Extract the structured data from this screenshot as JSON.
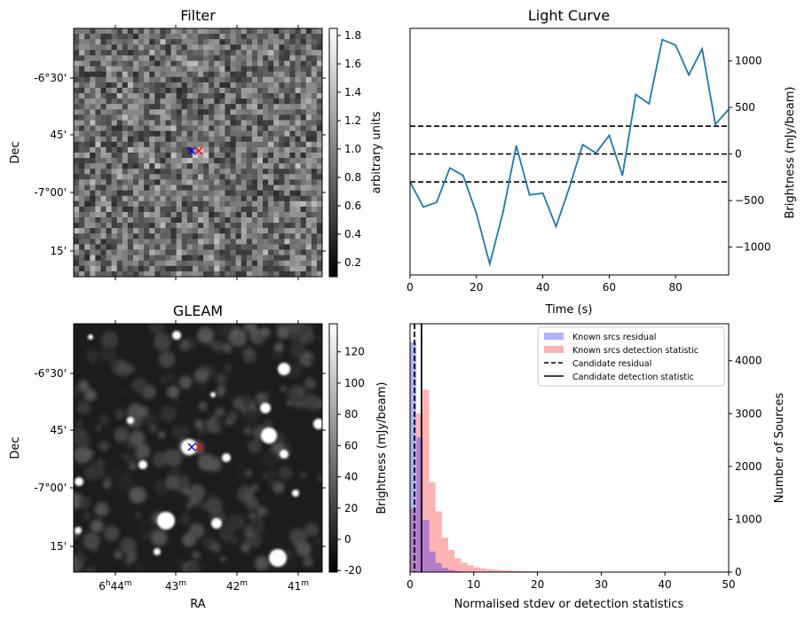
{
  "chart_data": [
    {
      "type": "heatmap",
      "title": "Filter",
      "ylabel": "Dec",
      "y_ticks": [
        "-6°30'",
        "45'",
        "-7°00'",
        "15'"
      ],
      "colorbar": {
        "label": "arbitrary units",
        "ticks": [
          "0.2",
          "0.4",
          "0.6",
          "0.8",
          "1.0",
          "1.2",
          "1.4",
          "1.6",
          "1.8"
        ],
        "range": [
          0.1,
          1.85
        ],
        "colormap": "gray"
      },
      "markers": [
        {
          "symbol": "x",
          "color": "#0000ff"
        },
        {
          "symbol": "x",
          "color": "#ff0000"
        }
      ]
    },
    {
      "type": "line",
      "title": "Light Curve",
      "xlabel": "Time (s)",
      "ylabel": "Brightness (mJy/beam)",
      "xlim": [
        0,
        96
      ],
      "ylim": [
        -1300,
        1350
      ],
      "x_ticks": [
        0,
        20,
        40,
        60,
        80
      ],
      "y_ticks": [
        -1000,
        -500,
        0,
        500,
        1000
      ],
      "series": [
        {
          "color": "#1f77b4",
          "x": [
            0,
            4,
            8,
            12,
            16,
            20,
            24,
            28,
            32,
            36,
            40,
            44,
            48,
            52,
            56,
            60,
            64,
            68,
            72,
            76,
            80,
            84,
            88,
            92,
            96
          ],
          "y": [
            -300,
            -570,
            -520,
            -150,
            -230,
            -640,
            -1180,
            -630,
            90,
            -440,
            -420,
            -780,
            -360,
            100,
            10,
            200,
            -230,
            640,
            540,
            1230,
            1170,
            850,
            1130,
            320,
            480
          ]
        }
      ],
      "hlines": [
        {
          "y": 300,
          "style": "dashed",
          "color": "#000000"
        },
        {
          "y": 0,
          "style": "dashed",
          "color": "#000000"
        },
        {
          "y": -300,
          "style": "dashed",
          "color": "#000000"
        }
      ]
    },
    {
      "type": "heatmap",
      "title": "GLEAM",
      "xlabel": "RA",
      "ylabel": "Dec",
      "x_ticks": [
        "6h44m",
        "43m",
        "42m",
        "41m"
      ],
      "y_ticks": [
        "-6°30'",
        "45'",
        "-7°00'",
        "15'"
      ],
      "colorbar": {
        "label": "Brightness (mJy/beam)",
        "ticks": [
          "-20",
          "0",
          "20",
          "40",
          "60",
          "80",
          "100",
          "120"
        ],
        "range": [
          -21,
          138
        ],
        "colormap": "gray"
      },
      "markers": [
        {
          "symbol": "x",
          "color": "#0000ff"
        },
        {
          "symbol": "x",
          "color": "#ff0000"
        }
      ]
    },
    {
      "type": "bar",
      "subtype": "histogram",
      "xlabel": "Normalised stdev or detection statistics",
      "ylabel": "Number of Sources",
      "xlim": [
        0,
        50
      ],
      "ylim": [
        0,
        4700
      ],
      "x_ticks": [
        0,
        10,
        20,
        30,
        40,
        50
      ],
      "y_ticks": [
        0,
        1000,
        2000,
        3000,
        4000
      ],
      "legend": "top-right",
      "series": [
        {
          "name": "Known srcs residual",
          "color": "#0000ff",
          "bin_width": 1,
          "bin_start": 0,
          "values": [
            4350,
            2550,
            990,
            390,
            170,
            80,
            40,
            20,
            10,
            5
          ]
        },
        {
          "name": "Known srcs detection statistic",
          "color": "#ff0000",
          "bin_width": 1,
          "bin_start": 0,
          "values": [
            1200,
            3000,
            3450,
            1700,
            1150,
            650,
            420,
            260,
            180,
            130,
            90,
            70,
            55,
            45,
            38,
            32,
            26,
            22,
            18,
            15,
            13,
            11,
            10,
            9,
            8,
            7,
            6,
            6,
            5,
            5,
            4,
            4,
            4,
            3,
            3,
            3,
            3,
            2,
            2,
            2,
            2,
            2,
            2,
            1,
            1,
            1,
            1,
            1
          ]
        }
      ],
      "vlines": [
        {
          "name": "Candidate residual",
          "x": 0.7,
          "style": "dashed",
          "color": "#000000"
        },
        {
          "name": "Candidate detection statistic",
          "x": 1.8,
          "style": "solid",
          "color": "#000000"
        }
      ]
    }
  ],
  "panels": {
    "filter": {
      "title": "Filter",
      "ylabel": "Dec",
      "cbar_label": "arbitrary units"
    },
    "lightcurve": {
      "title": "Light Curve",
      "xlabel": "Time (s)",
      "ylabel": "Brightness (mJy/beam)"
    },
    "gleam": {
      "title": "GLEAM",
      "xlabel": "RA",
      "ylabel": "Dec",
      "cbar_label": "Brightness (mJy/beam)"
    },
    "histogram": {
      "xlabel": "Normalised stdev or detection statistics",
      "ylabel": "Number of Sources"
    }
  }
}
